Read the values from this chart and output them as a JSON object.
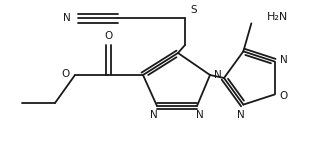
{
  "bg_color": "#ffffff",
  "line_color": "#1a1a1a",
  "line_width": 1.3,
  "font_size": 7.5,
  "fig_width": 3.15,
  "fig_height": 1.53,
  "dpi": 100,
  "xlim": [
    0,
    315
  ],
  "ylim": [
    0,
    153
  ]
}
